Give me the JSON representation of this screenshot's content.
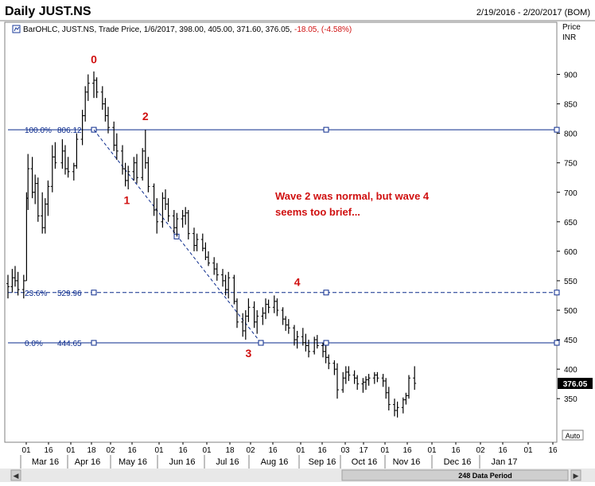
{
  "header": {
    "title": "Daily JUST.NS",
    "date_range": "2/19/2016 - 2/20/2017 (BOM)",
    "legend": "BarOHLC, JUST.NS, Trade Price, 1/6/2017, 398.00, 405.00, 371.60, 376.05,",
    "change": "-18.05, (-4.58%)"
  },
  "axis": {
    "price_label": "Price",
    "unit_label": "INR",
    "current_price": "376.05",
    "auto_label": "Auto"
  },
  "footer": {
    "data_period": "248 Data Period"
  },
  "colors": {
    "bars": "#000000",
    "fib": "#0a2a8c",
    "annotation": "#d01010",
    "change": "#d01010"
  },
  "chart_data": {
    "type": "bar",
    "subtype": "ohlc",
    "title": "Daily JUST.NS",
    "ylabel": "Price INR",
    "ylim": [
      283,
      947
    ],
    "y_ticks": [
      350,
      400,
      450,
      500,
      550,
      600,
      650,
      700,
      750,
      800,
      850,
      900
    ],
    "x_day_ticks": [
      "01",
      "16",
      "01",
      "18",
      "02",
      "16",
      "01",
      "16",
      "01",
      "18",
      "02",
      "16",
      "01",
      "16",
      "03",
      "17",
      "01",
      "16",
      "01",
      "16",
      "02",
      "16",
      "01",
      "16"
    ],
    "x_month_labels": [
      "Mar 16",
      "Apr 16",
      "May 16",
      "Jun 16",
      "Jul 16",
      "Aug 16",
      "Sep 16",
      "Oct 16",
      "Nov 16",
      "Dec 16",
      "Jan 17"
    ],
    "fib_levels": [
      {
        "percent": "100.0%",
        "value": "806.12"
      },
      {
        "percent": "23.6%",
        "value": "529.96"
      },
      {
        "percent": "0.0%",
        "value": "444.65"
      }
    ],
    "wave_labels": [
      {
        "label": "0",
        "date": "2016-04-19",
        "price": 903
      },
      {
        "label": "1",
        "date": "2016-05-12",
        "price": 710
      },
      {
        "label": "2",
        "date": "2016-05-25",
        "price": 806
      },
      {
        "label": "3",
        "date": "2016-08-05",
        "price": 450
      },
      {
        "label": "4",
        "date": "2016-09-08",
        "price": 525
      }
    ],
    "annotation": [
      "Wave 2 was normal, but wave 4",
      "seems too brief..."
    ],
    "series": [
      {
        "type": "ohlc",
        "points": [
          [
            "2016-02-19",
            545,
            560,
            520,
            540
          ],
          [
            "2016-02-22",
            540,
            570,
            530,
            555
          ],
          [
            "2016-02-24",
            555,
            575,
            540,
            550
          ],
          [
            "2016-02-26",
            550,
            565,
            525,
            535
          ],
          [
            "2016-03-01",
            535,
            560,
            520,
            550
          ],
          [
            "2016-03-03",
            550,
            700,
            550,
            690
          ],
          [
            "2016-03-04",
            690,
            765,
            670,
            740
          ],
          [
            "2016-03-07",
            740,
            760,
            690,
            700
          ],
          [
            "2016-03-09",
            700,
            730,
            680,
            715
          ],
          [
            "2016-03-11",
            715,
            725,
            650,
            660
          ],
          [
            "2016-03-14",
            660,
            700,
            630,
            640
          ],
          [
            "2016-03-16",
            640,
            690,
            630,
            680
          ],
          [
            "2016-03-18",
            680,
            720,
            660,
            710
          ],
          [
            "2016-03-21",
            710,
            780,
            700,
            760
          ],
          [
            "2016-03-23",
            760,
            785,
            740,
            750
          ],
          [
            "2016-03-28",
            750,
            790,
            740,
            770
          ],
          [
            "2016-03-30",
            770,
            780,
            730,
            740
          ],
          [
            "2016-04-01",
            740,
            760,
            725,
            735
          ],
          [
            "2016-04-05",
            735,
            750,
            720,
            745
          ],
          [
            "2016-04-07",
            745,
            800,
            740,
            790
          ],
          [
            "2016-04-11",
            790,
            840,
            780,
            830
          ],
          [
            "2016-04-13",
            830,
            880,
            820,
            870
          ],
          [
            "2016-04-15",
            870,
            900,
            855,
            885
          ],
          [
            "2016-04-19",
            885,
            905,
            860,
            890
          ],
          [
            "2016-04-21",
            890,
            895,
            860,
            870
          ],
          [
            "2016-04-25",
            870,
            880,
            840,
            850
          ],
          [
            "2016-04-27",
            850,
            860,
            820,
            830
          ],
          [
            "2016-04-29",
            830,
            845,
            800,
            810
          ],
          [
            "2016-05-03",
            810,
            820,
            770,
            780
          ],
          [
            "2016-05-05",
            780,
            800,
            755,
            770
          ],
          [
            "2016-05-09",
            770,
            780,
            730,
            740
          ],
          [
            "2016-05-11",
            740,
            750,
            710,
            720
          ],
          [
            "2016-05-13",
            720,
            745,
            705,
            735
          ],
          [
            "2016-05-17",
            735,
            760,
            720,
            750
          ],
          [
            "2016-05-19",
            750,
            765,
            715,
            725
          ],
          [
            "2016-05-23",
            725,
            775,
            720,
            770
          ],
          [
            "2016-05-25",
            770,
            806,
            740,
            750
          ],
          [
            "2016-05-27",
            750,
            760,
            700,
            710
          ],
          [
            "2016-05-31",
            710,
            715,
            660,
            670
          ],
          [
            "2016-06-02",
            670,
            690,
            630,
            650
          ],
          [
            "2016-06-06",
            650,
            700,
            640,
            690
          ],
          [
            "2016-06-08",
            690,
            705,
            670,
            680
          ],
          [
            "2016-06-10",
            680,
            690,
            650,
            660
          ],
          [
            "2016-06-14",
            660,
            670,
            630,
            640
          ],
          [
            "2016-06-16",
            640,
            665,
            625,
            655
          ],
          [
            "2016-06-20",
            655,
            670,
            640,
            660
          ],
          [
            "2016-06-22",
            660,
            675,
            645,
            665
          ],
          [
            "2016-06-24",
            665,
            670,
            620,
            630
          ],
          [
            "2016-06-28",
            630,
            640,
            600,
            610
          ],
          [
            "2016-06-30",
            610,
            630,
            600,
            620
          ],
          [
            "2016-07-04",
            620,
            630,
            600,
            605
          ],
          [
            "2016-07-06",
            605,
            615,
            585,
            590
          ],
          [
            "2016-07-08",
            590,
            600,
            575,
            580
          ],
          [
            "2016-07-12",
            580,
            590,
            560,
            570
          ],
          [
            "2016-07-14",
            570,
            580,
            550,
            560
          ],
          [
            "2016-07-18",
            560,
            570,
            540,
            550
          ],
          [
            "2016-07-20",
            550,
            560,
            525,
            535
          ],
          [
            "2016-07-22",
            535,
            565,
            520,
            555
          ],
          [
            "2016-07-26",
            555,
            560,
            510,
            515
          ],
          [
            "2016-07-28",
            515,
            520,
            470,
            480
          ],
          [
            "2016-08-01",
            480,
            495,
            455,
            465
          ],
          [
            "2016-08-03",
            465,
            500,
            450,
            490
          ],
          [
            "2016-08-05",
            490,
            520,
            480,
            505
          ],
          [
            "2016-08-09",
            505,
            515,
            470,
            480
          ],
          [
            "2016-08-11",
            480,
            500,
            460,
            490
          ],
          [
            "2016-08-15",
            490,
            505,
            475,
            495
          ],
          [
            "2016-08-17",
            495,
            520,
            485,
            510
          ],
          [
            "2016-08-19",
            510,
            518,
            495,
            505
          ],
          [
            "2016-08-23",
            505,
            525,
            495,
            515
          ],
          [
            "2016-08-25",
            515,
            520,
            490,
            500
          ],
          [
            "2016-08-29",
            500,
            505,
            475,
            485
          ],
          [
            "2016-08-31",
            485,
            490,
            465,
            475
          ],
          [
            "2016-09-02",
            475,
            485,
            460,
            470
          ],
          [
            "2016-09-06",
            470,
            475,
            440,
            450
          ],
          [
            "2016-09-08",
            450,
            465,
            435,
            455
          ],
          [
            "2016-09-12",
            455,
            470,
            440,
            445
          ],
          [
            "2016-09-14",
            445,
            460,
            430,
            440
          ],
          [
            "2016-09-16",
            440,
            450,
            420,
            430
          ],
          [
            "2016-09-20",
            430,
            455,
            425,
            450
          ],
          [
            "2016-09-22",
            450,
            458,
            435,
            440
          ],
          [
            "2016-09-26",
            440,
            445,
            420,
            430
          ],
          [
            "2016-09-28",
            430,
            440,
            410,
            420
          ],
          [
            "2016-09-30",
            420,
            425,
            400,
            410
          ],
          [
            "2016-10-04",
            410,
            415,
            390,
            400
          ],
          [
            "2016-10-06",
            400,
            410,
            350,
            365
          ],
          [
            "2016-10-10",
            365,
            395,
            360,
            385
          ],
          [
            "2016-10-12",
            385,
            405,
            375,
            395
          ],
          [
            "2016-10-14",
            395,
            405,
            380,
            390
          ],
          [
            "2016-10-18",
            390,
            398,
            375,
            385
          ],
          [
            "2016-10-20",
            385,
            390,
            365,
            375
          ],
          [
            "2016-10-24",
            375,
            385,
            360,
            378
          ],
          [
            "2016-10-26",
            378,
            388,
            365,
            382
          ],
          [
            "2016-10-28",
            382,
            392,
            372,
            385
          ],
          [
            "2016-11-01",
            385,
            395,
            375,
            390
          ],
          [
            "2016-11-03",
            390,
            395,
            378,
            385
          ],
          [
            "2016-11-07",
            385,
            392,
            370,
            380
          ],
          [
            "2016-11-09",
            380,
            385,
            350,
            360
          ],
          [
            "2016-11-11",
            360,
            370,
            330,
            340
          ],
          [
            "2016-11-15",
            340,
            350,
            320,
            330
          ],
          [
            "2016-11-17",
            330,
            345,
            318,
            335
          ],
          [
            "2016-11-21",
            335,
            352,
            325,
            348
          ],
          [
            "2016-11-23",
            348,
            360,
            340,
            355
          ],
          [
            "2016-11-25",
            355,
            390,
            350,
            385
          ],
          [
            "2016-11-29",
            385,
            405,
            365,
            376
          ]
        ]
      }
    ]
  }
}
